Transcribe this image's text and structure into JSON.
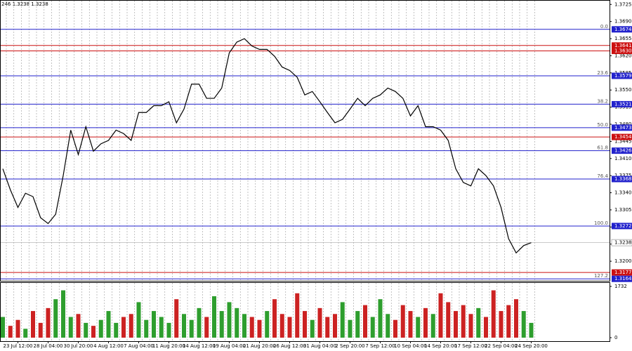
{
  "chart_data": {
    "type": "line",
    "header": "246 1.3238 1.3238",
    "categories": [
      null,
      null,
      "23 Jul 12:00",
      null,
      null,
      null,
      "28 Jul 04:00",
      null,
      null,
      null,
      "30 Jul 20:00",
      null,
      null,
      null,
      "4 Aug 12:00",
      null,
      null,
      null,
      "7 Aug 04:00",
      null,
      null,
      null,
      "11 Aug 20:00",
      null,
      null,
      null,
      "14 Aug 12:00",
      null,
      null,
      null,
      "19 Aug 04:00",
      null,
      null,
      null,
      "21 Aug 20:00",
      null,
      null,
      null,
      "26 Aug 12:00",
      null,
      null,
      null,
      "31 Aug 04:00",
      null,
      null,
      null,
      "2 Sep 20:00",
      null,
      null,
      null,
      "7 Sep 12:00",
      null,
      null,
      null,
      "10 Sep 04:00",
      null,
      null,
      null,
      "14 Sep 20:00",
      null,
      null,
      null,
      "17 Sep 12:00",
      null,
      null,
      null,
      "22 Sep 04:00",
      null,
      null,
      null,
      "24 Sep 20:00"
    ],
    "series": [
      {
        "color": "#000000",
        "values": [
          1.3389,
          1.3346,
          1.331,
          1.3339,
          1.3332,
          1.3289,
          1.3277,
          1.3296,
          1.3375,
          1.3468,
          1.3418,
          1.3475,
          1.3425,
          1.344,
          1.3447,
          1.3468,
          1.3461,
          1.3447,
          1.3504,
          1.3504,
          1.3518,
          1.3518,
          1.3526,
          1.3483,
          1.3511,
          1.3562,
          1.3562,
          1.3533,
          1.3533,
          1.3554,
          1.3626,
          1.3648,
          1.3655,
          1.364,
          1.3633,
          1.3633,
          1.3619,
          1.3597,
          1.359,
          1.3576,
          1.354,
          1.3547,
          1.3526,
          1.3504,
          1.3483,
          1.349,
          1.3511,
          1.3533,
          1.3518,
          1.3533,
          1.354,
          1.3554,
          1.3547,
          1.3533,
          1.3497,
          1.3518,
          1.3475,
          1.3475,
          1.3468,
          1.3447,
          1.3389,
          1.3361,
          1.3354,
          1.3389,
          1.3375,
          1.3354,
          1.331,
          1.3246,
          1.3217,
          1.3232,
          1.3238
        ]
      }
    ],
    "ylim": [
      1.316,
      1.3734
    ],
    "yticks": [
      1.3725,
      {
        "value": 1.369,
        "label": "1.3690"
      },
      1.3655,
      {
        "value": 1.362,
        "label": "1.3620"
      },
      1.3585,
      {
        "value": 1.355,
        "label": "1.3550"
      },
      1.3515,
      {
        "value": 1.348,
        "label": "1.3480"
      },
      1.3445,
      {
        "value": 1.341,
        "label": "1.3410"
      },
      1.3375,
      {
        "value": 1.334,
        "label": "1.3340"
      },
      1.3305,
      {
        "value": 1.327,
        "label": "1.3270"
      },
      1.3235,
      {
        "value": 1.32,
        "label": "1.3200"
      }
    ],
    "current_price": 1.3238,
    "levels": {
      "values": [
        1.3674,
        1.3641,
        1.363,
        1.3579,
        1.3521,
        1.3473,
        1.3454,
        1.3426,
        1.3368,
        1.3272,
        1.3177,
        1.3164
      ],
      "value_labels": [
        "1.3674",
        "1.3641",
        "1.3630",
        "1.3579",
        "1.3521",
        "1.3473",
        "1.3454",
        "1.3426",
        "1.3368",
        "1.3272",
        "1.3177",
        "1.3164"
      ],
      "fib_labels": [
        "0.0",
        null,
        null,
        "23.6",
        "38.2",
        "50.0",
        null,
        "61.8",
        "76.4",
        "100.0",
        null,
        "127.2"
      ],
      "colors": [
        "#2222cc",
        "#cc1111",
        "#cc1111",
        "#2222cc",
        "#2222cc",
        "#2222cc",
        "#cc1111",
        "#2222cc",
        "#2222cc",
        "#2222cc",
        "#cc1111",
        "#2222cc"
      ]
    },
    "volume": {
      "values": [
        700,
        400,
        600,
        300,
        900,
        500,
        1000,
        1300,
        1600,
        700,
        800,
        500,
        400,
        600,
        900,
        500,
        700,
        800,
        1200,
        600,
        900,
        700,
        500,
        1300,
        800,
        600,
        1000,
        700,
        1400,
        900,
        1200,
        1000,
        800,
        700,
        600,
        900,
        1300,
        800,
        700,
        1500,
        900,
        600,
        1000,
        700,
        800,
        1200,
        600,
        900,
        1100,
        700,
        1300,
        800,
        600,
        1100,
        900,
        700,
        1000,
        800,
        1500,
        1200,
        900,
        1100,
        800,
        1000,
        700,
        1600,
        900,
        1100,
        1300,
        900,
        500
      ],
      "ylim": [
        0,
        1732
      ],
      "yticks": [
        1732,
        0
      ],
      "up_color": "#2e9e2e",
      "down_color": "#cc2222"
    }
  }
}
